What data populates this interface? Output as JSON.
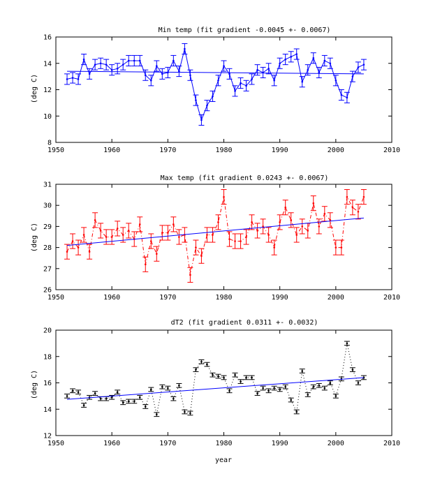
{
  "chart_data": [
    {
      "type": "line",
      "title": "Min temp (fit gradient -0.0045 +- 0.0067)",
      "ylabel": "(deg C)",
      "xlabel": "",
      "xlim": [
        1950,
        2010
      ],
      "ylim": [
        8,
        16
      ],
      "xticks": [
        1950,
        1960,
        1970,
        1980,
        1990,
        2000,
        2010
      ],
      "yticks": [
        8,
        10,
        12,
        14,
        16
      ],
      "grid": false,
      "line_style": "solid",
      "color": "#0000ff",
      "errorbar_color": "#0000ff",
      "error": 0.4,
      "x": [
        1952,
        1953,
        1954,
        1955,
        1956,
        1957,
        1958,
        1959,
        1960,
        1961,
        1962,
        1963,
        1964,
        1965,
        1966,
        1967,
        1968,
        1969,
        1970,
        1971,
        1972,
        1973,
        1974,
        1975,
        1976,
        1977,
        1978,
        1979,
        1980,
        1981,
        1982,
        1983,
        1984,
        1985,
        1986,
        1987,
        1988,
        1989,
        1990,
        1991,
        1992,
        1993,
        1994,
        1995,
        1996,
        1997,
        1998,
        1999,
        2000,
        2001,
        2002,
        2003,
        2004,
        2005
      ],
      "values": [
        12.8,
        12.9,
        12.8,
        14.3,
        13.2,
        13.9,
        14.0,
        13.9,
        13.5,
        13.6,
        13.9,
        14.2,
        14.2,
        14.2,
        13.1,
        12.7,
        13.8,
        13.2,
        13.3,
        14.2,
        13.4,
        15.1,
        13.1,
        11.2,
        9.7,
        10.8,
        11.5,
        12.7,
        13.8,
        13.2,
        11.9,
        12.5,
        12.3,
        12.8,
        13.5,
        13.3,
        13.6,
        12.7,
        14.0,
        14.3,
        14.5,
        14.7,
        12.6,
        13.5,
        14.4,
        13.3,
        14.2,
        14.0,
        12.7,
        11.6,
        11.4,
        13.0,
        13.7,
        13.9
      ],
      "fit": {
        "x": [
          1952,
          2005
        ],
        "y": [
          13.4,
          13.2
        ]
      }
    },
    {
      "type": "line",
      "title": "Max temp (fit gradient 0.0243 +- 0.0067)",
      "ylabel": "(deg C)",
      "xlabel": "",
      "xlim": [
        1950,
        2010
      ],
      "ylim": [
        26,
        31
      ],
      "xticks": [
        1950,
        1960,
        1970,
        1980,
        1990,
        2000,
        2010
      ],
      "yticks": [
        26,
        27,
        28,
        29,
        30,
        31
      ],
      "grid": false,
      "line_style": "dash-dot",
      "color": "#ff0000",
      "errorbar_color": "#ff0000",
      "error": 0.35,
      "x": [
        1952,
        1953,
        1954,
        1955,
        1956,
        1957,
        1958,
        1959,
        1960,
        1961,
        1962,
        1963,
        1964,
        1965,
        1966,
        1967,
        1968,
        1969,
        1970,
        1971,
        1972,
        1973,
        1974,
        1975,
        1976,
        1977,
        1978,
        1979,
        1980,
        1981,
        1982,
        1983,
        1984,
        1985,
        1986,
        1987,
        1988,
        1989,
        1990,
        1991,
        1992,
        1993,
        1994,
        1995,
        1996,
        1997,
        1998,
        1999,
        2000,
        2001,
        2002,
        2003,
        2004,
        2005
      ],
      "values": [
        27.8,
        28.3,
        28.0,
        28.6,
        27.8,
        29.3,
        28.8,
        28.5,
        28.5,
        28.9,
        28.6,
        28.8,
        28.4,
        29.1,
        27.2,
        28.3,
        27.7,
        28.7,
        28.7,
        29.1,
        28.5,
        28.6,
        26.7,
        28.0,
        27.6,
        28.6,
        28.6,
        29.2,
        30.4,
        28.4,
        28.3,
        28.3,
        28.5,
        29.2,
        28.8,
        29.0,
        28.6,
        28.0,
        29.2,
        29.9,
        29.3,
        28.6,
        29.0,
        28.8,
        30.1,
        29.0,
        29.6,
        29.3,
        28.0,
        28.0,
        30.4,
        29.9,
        29.7,
        30.4
      ],
      "fit": {
        "x": [
          1952,
          2005
        ],
        "y": [
          28.1,
          29.4
        ]
      }
    },
    {
      "type": "line",
      "title": "dT2 (fit gradient 0.0311 +- 0.0032)",
      "ylabel": "(deg C)",
      "xlabel": "year",
      "xlim": [
        1950,
        2010
      ],
      "ylim": [
        12,
        20
      ],
      "xticks": [
        1950,
        1960,
        1970,
        1980,
        1990,
        2000,
        2010
      ],
      "yticks": [
        12,
        14,
        16,
        18,
        20
      ],
      "grid": false,
      "line_style": "dotted",
      "color": "#000000",
      "errorbar_color": "#000000",
      "error": 0.15,
      "x": [
        1952,
        1953,
        1954,
        1955,
        1956,
        1957,
        1958,
        1959,
        1960,
        1961,
        1962,
        1963,
        1964,
        1965,
        1966,
        1967,
        1968,
        1969,
        1970,
        1971,
        1972,
        1973,
        1974,
        1975,
        1976,
        1977,
        1978,
        1979,
        1980,
        1981,
        1982,
        1983,
        1984,
        1985,
        1986,
        1987,
        1988,
        1989,
        1990,
        1991,
        1992,
        1993,
        1994,
        1995,
        1996,
        1997,
        1998,
        1999,
        2000,
        2001,
        2002,
        2003,
        2004,
        2005
      ],
      "values": [
        15.0,
        15.4,
        15.3,
        14.3,
        14.9,
        15.2,
        14.8,
        14.8,
        14.9,
        15.3,
        14.5,
        14.6,
        14.6,
        14.9,
        14.2,
        15.5,
        13.6,
        15.7,
        15.6,
        14.8,
        15.8,
        13.8,
        13.7,
        17.0,
        17.6,
        17.4,
        16.6,
        16.5,
        16.4,
        15.4,
        16.6,
        16.1,
        16.4,
        16.4,
        15.2,
        15.6,
        15.4,
        15.6,
        15.5,
        15.7,
        14.7,
        13.8,
        16.9,
        15.1,
        15.7,
        15.8,
        15.6,
        16.0,
        15.0,
        16.3,
        19.0,
        17.0,
        16.0,
        16.4
      ],
      "fit": {
        "x": [
          1952,
          2005
        ],
        "y": [
          14.75,
          16.4
        ]
      }
    }
  ]
}
